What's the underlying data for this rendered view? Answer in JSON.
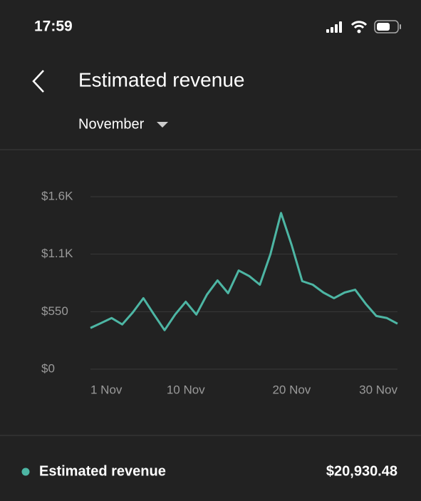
{
  "status_bar": {
    "time": "17:59"
  },
  "header": {
    "title": "Estimated revenue"
  },
  "period_selector": {
    "label": "November"
  },
  "chart_data": {
    "type": "line",
    "x": [
      1,
      2,
      3,
      4,
      5,
      6,
      7,
      8,
      9,
      10,
      11,
      12,
      13,
      14,
      15,
      16,
      17,
      18,
      19,
      20,
      21,
      22,
      23,
      24,
      25,
      26,
      27,
      28,
      29,
      30
    ],
    "series": [
      {
        "name": "Estimated revenue",
        "color": "#4db6a4",
        "values": [
          394,
          441,
          489,
          428,
          543,
          679,
          523,
          373,
          523,
          645,
          523,
          713,
          849,
          727,
          944,
          890,
          808,
          1100,
          1494,
          1188,
          842,
          808,
          733,
          679,
          733,
          760,
          625,
          509,
          489,
          435
        ]
      }
    ],
    "xlim": [
      1,
      30
    ],
    "xticks": [
      {
        "value": 1,
        "label": "1 Nov"
      },
      {
        "value": 10,
        "label": "10 Nov"
      },
      {
        "value": 20,
        "label": "20 Nov"
      },
      {
        "value": 30,
        "label": "30 Nov"
      }
    ],
    "ylim": [
      0,
      1650
    ],
    "yticks": [
      {
        "value": 0,
        "label": "$0"
      },
      {
        "value": 550,
        "label": "$550"
      },
      {
        "value": 1100,
        "label": "$1.1K"
      },
      {
        "value": 1650,
        "label": "$1.6K"
      }
    ],
    "grid": true
  },
  "summary": {
    "value": "$20,930.48"
  }
}
